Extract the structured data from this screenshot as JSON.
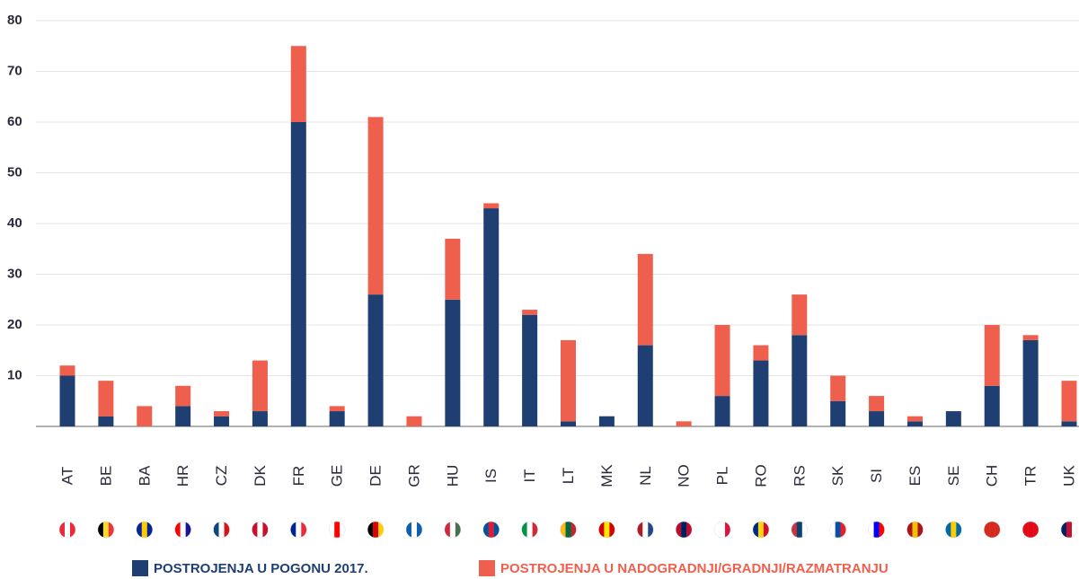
{
  "chart_data": {
    "type": "bar",
    "stacked": true,
    "categories": [
      "AT",
      "BE",
      "BA",
      "HR",
      "CZ",
      "DK",
      "FR",
      "GE",
      "DE",
      "GR",
      "HU",
      "IS",
      "IT",
      "LT",
      "MK",
      "NL",
      "NO",
      "PL",
      "RO",
      "RS",
      "SK",
      "SI",
      "ES",
      "SE",
      "CH",
      "TR",
      "UK"
    ],
    "series": [
      {
        "name": "POSTROJENJA U POGONU 2017.",
        "color": "#1f3f73",
        "values": [
          10,
          2,
          0,
          4,
          2,
          3,
          60,
          3,
          26,
          0,
          25,
          43,
          22,
          1,
          2,
          16,
          0,
          6,
          13,
          18,
          5,
          3,
          1,
          3,
          8,
          17,
          1
        ]
      },
      {
        "name": "POSTROJENJA U NADOGRADNJI/GRADNJI/RAZMATRANJU",
        "color": "#ef5f4e",
        "values": [
          2,
          7,
          4,
          4,
          1,
          10,
          15,
          1,
          35,
          2,
          12,
          1,
          1,
          16,
          0,
          18,
          1,
          14,
          3,
          8,
          5,
          3,
          1,
          0,
          12,
          1,
          8
        ]
      }
    ],
    "ylim": [
      0,
      80
    ],
    "yticks": [
      10,
      20,
      30,
      40,
      50,
      60,
      70,
      80
    ],
    "grid": true,
    "legend": "bottom"
  }
}
